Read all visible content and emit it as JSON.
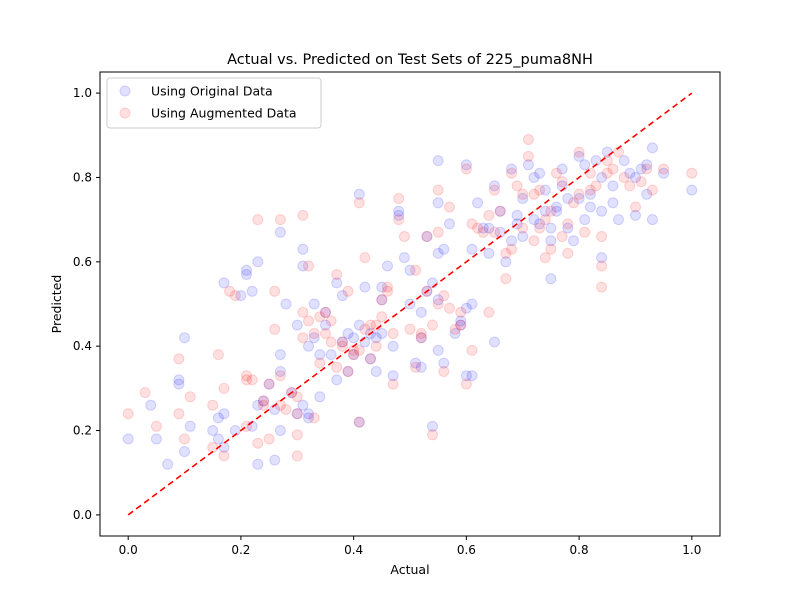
{
  "chart_data": {
    "type": "scatter",
    "title": "Actual vs. Predicted on Test Sets of 225_puma8NH",
    "xlabel": "Actual",
    "ylabel": "Predicted",
    "xlim": [
      -0.05,
      1.05
    ],
    "ylim": [
      -0.05,
      1.05
    ],
    "xticks": [
      "0.0",
      "0.2",
      "0.4",
      "0.6",
      "0.8",
      "1.0"
    ],
    "yticks": [
      "0.0",
      "0.2",
      "0.4",
      "0.6",
      "0.8",
      "1.0"
    ],
    "grid": false,
    "legend_position": "upper-left",
    "reference_line": {
      "style": "dashed",
      "color": "#ff0000",
      "from": [
        0,
        0
      ],
      "to": [
        1,
        1
      ]
    },
    "series": [
      {
        "name": "Using Original Data",
        "color": "#0000ff",
        "alpha": 0.12,
        "points": [
          [
            0.0,
            0.18
          ],
          [
            0.04,
            0.26
          ],
          [
            0.05,
            0.18
          ],
          [
            0.07,
            0.12
          ],
          [
            0.09,
            0.32
          ],
          [
            0.09,
            0.31
          ],
          [
            0.1,
            0.15
          ],
          [
            0.1,
            0.42
          ],
          [
            0.11,
            0.21
          ],
          [
            0.15,
            0.2
          ],
          [
            0.16,
            0.18
          ],
          [
            0.16,
            0.23
          ],
          [
            0.17,
            0.24
          ],
          [
            0.17,
            0.16
          ],
          [
            0.17,
            0.55
          ],
          [
            0.19,
            0.2
          ],
          [
            0.2,
            0.52
          ],
          [
            0.21,
            0.57
          ],
          [
            0.21,
            0.58
          ],
          [
            0.22,
            0.53
          ],
          [
            0.22,
            0.21
          ],
          [
            0.23,
            0.26
          ],
          [
            0.23,
            0.12
          ],
          [
            0.23,
            0.6
          ],
          [
            0.24,
            0.27
          ],
          [
            0.25,
            0.31
          ],
          [
            0.26,
            0.13
          ],
          [
            0.26,
            0.25
          ],
          [
            0.27,
            0.38
          ],
          [
            0.27,
            0.34
          ],
          [
            0.27,
            0.2
          ],
          [
            0.27,
            0.67
          ],
          [
            0.28,
            0.5
          ],
          [
            0.29,
            0.29
          ],
          [
            0.3,
            0.24
          ],
          [
            0.3,
            0.45
          ],
          [
            0.31,
            0.63
          ],
          [
            0.31,
            0.59
          ],
          [
            0.31,
            0.26
          ],
          [
            0.32,
            0.4
          ],
          [
            0.32,
            0.24
          ],
          [
            0.32,
            0.23
          ],
          [
            0.33,
            0.5
          ],
          [
            0.33,
            0.42
          ],
          [
            0.34,
            0.38
          ],
          [
            0.34,
            0.28
          ],
          [
            0.35,
            0.45
          ],
          [
            0.35,
            0.48
          ],
          [
            0.36,
            0.38
          ],
          [
            0.37,
            0.32
          ],
          [
            0.37,
            0.55
          ],
          [
            0.38,
            0.41
          ],
          [
            0.38,
            0.52
          ],
          [
            0.39,
            0.34
          ],
          [
            0.39,
            0.43
          ],
          [
            0.4,
            0.38
          ],
          [
            0.4,
            0.42
          ],
          [
            0.41,
            0.76
          ],
          [
            0.41,
            0.22
          ],
          [
            0.41,
            0.45
          ],
          [
            0.42,
            0.54
          ],
          [
            0.42,
            0.41
          ],
          [
            0.43,
            0.37
          ],
          [
            0.43,
            0.43
          ],
          [
            0.44,
            0.34
          ],
          [
            0.44,
            0.42
          ],
          [
            0.45,
            0.43
          ],
          [
            0.45,
            0.51
          ],
          [
            0.45,
            0.54
          ],
          [
            0.46,
            0.59
          ],
          [
            0.47,
            0.4
          ],
          [
            0.47,
            0.33
          ],
          [
            0.48,
            0.72
          ],
          [
            0.48,
            0.71
          ],
          [
            0.49,
            0.61
          ],
          [
            0.5,
            0.5
          ],
          [
            0.5,
            0.58
          ],
          [
            0.51,
            0.36
          ],
          [
            0.52,
            0.48
          ],
          [
            0.52,
            0.35
          ],
          [
            0.52,
            0.42
          ],
          [
            0.53,
            0.66
          ],
          [
            0.53,
            0.53
          ],
          [
            0.54,
            0.55
          ],
          [
            0.54,
            0.21
          ],
          [
            0.55,
            0.84
          ],
          [
            0.55,
            0.74
          ],
          [
            0.55,
            0.62
          ],
          [
            0.55,
            0.51
          ],
          [
            0.55,
            0.39
          ],
          [
            0.56,
            0.36
          ],
          [
            0.56,
            0.63
          ],
          [
            0.57,
            0.69
          ],
          [
            0.58,
            0.43
          ],
          [
            0.59,
            0.46
          ],
          [
            0.59,
            0.45
          ],
          [
            0.6,
            0.83
          ],
          [
            0.6,
            0.49
          ],
          [
            0.6,
            0.33
          ],
          [
            0.61,
            0.33
          ],
          [
            0.61,
            0.5
          ],
          [
            0.61,
            0.63
          ],
          [
            0.62,
            0.74
          ],
          [
            0.63,
            0.68
          ],
          [
            0.64,
            0.62
          ],
          [
            0.64,
            0.68
          ],
          [
            0.65,
            0.78
          ],
          [
            0.65,
            0.41
          ],
          [
            0.66,
            0.72
          ],
          [
            0.66,
            0.67
          ],
          [
            0.67,
            0.6
          ],
          [
            0.68,
            0.65
          ],
          [
            0.68,
            0.82
          ],
          [
            0.69,
            0.69
          ],
          [
            0.69,
            0.71
          ],
          [
            0.7,
            0.75
          ],
          [
            0.7,
            0.66
          ],
          [
            0.71,
            0.83
          ],
          [
            0.72,
            0.8
          ],
          [
            0.72,
            0.7
          ],
          [
            0.73,
            0.81
          ],
          [
            0.73,
            0.69
          ],
          [
            0.74,
            0.72
          ],
          [
            0.74,
            0.77
          ],
          [
            0.75,
            0.65
          ],
          [
            0.75,
            0.68
          ],
          [
            0.75,
            0.56
          ],
          [
            0.76,
            0.72
          ],
          [
            0.76,
            0.73
          ],
          [
            0.77,
            0.78
          ],
          [
            0.77,
            0.82
          ],
          [
            0.78,
            0.75
          ],
          [
            0.78,
            0.68
          ],
          [
            0.79,
            0.65
          ],
          [
            0.8,
            0.75
          ],
          [
            0.8,
            0.85
          ],
          [
            0.81,
            0.83
          ],
          [
            0.81,
            0.7
          ],
          [
            0.82,
            0.76
          ],
          [
            0.82,
            0.73
          ],
          [
            0.83,
            0.84
          ],
          [
            0.84,
            0.8
          ],
          [
            0.84,
            0.72
          ],
          [
            0.84,
            0.61
          ],
          [
            0.85,
            0.86
          ],
          [
            0.86,
            0.78
          ],
          [
            0.86,
            0.74
          ],
          [
            0.87,
            0.7
          ],
          [
            0.88,
            0.84
          ],
          [
            0.89,
            0.81
          ],
          [
            0.9,
            0.71
          ],
          [
            0.9,
            0.8
          ],
          [
            0.91,
            0.82
          ],
          [
            0.92,
            0.83
          ],
          [
            0.92,
            0.76
          ],
          [
            0.93,
            0.87
          ],
          [
            0.93,
            0.7
          ],
          [
            0.95,
            0.81
          ],
          [
            1.0,
            0.77
          ]
        ]
      },
      {
        "name": "Using Augmented Data",
        "color": "#ff0000",
        "alpha": 0.12,
        "points": [
          [
            0.0,
            0.24
          ],
          [
            0.03,
            0.29
          ],
          [
            0.05,
            0.21
          ],
          [
            0.09,
            0.37
          ],
          [
            0.09,
            0.24
          ],
          [
            0.1,
            0.18
          ],
          [
            0.11,
            0.28
          ],
          [
            0.15,
            0.26
          ],
          [
            0.15,
            0.16
          ],
          [
            0.16,
            0.38
          ],
          [
            0.17,
            0.3
          ],
          [
            0.17,
            0.14
          ],
          [
            0.18,
            0.53
          ],
          [
            0.19,
            0.52
          ],
          [
            0.21,
            0.33
          ],
          [
            0.21,
            0.21
          ],
          [
            0.21,
            0.32
          ],
          [
            0.22,
            0.32
          ],
          [
            0.23,
            0.7
          ],
          [
            0.23,
            0.17
          ],
          [
            0.24,
            0.27
          ],
          [
            0.24,
            0.26
          ],
          [
            0.25,
            0.18
          ],
          [
            0.25,
            0.31
          ],
          [
            0.26,
            0.44
          ],
          [
            0.26,
            0.53
          ],
          [
            0.27,
            0.7
          ],
          [
            0.27,
            0.33
          ],
          [
            0.27,
            0.26
          ],
          [
            0.28,
            0.25
          ],
          [
            0.29,
            0.29
          ],
          [
            0.3,
            0.19
          ],
          [
            0.3,
            0.24
          ],
          [
            0.3,
            0.28
          ],
          [
            0.3,
            0.14
          ],
          [
            0.31,
            0.42
          ],
          [
            0.31,
            0.71
          ],
          [
            0.31,
            0.48
          ],
          [
            0.32,
            0.46
          ],
          [
            0.32,
            0.59
          ],
          [
            0.33,
            0.23
          ],
          [
            0.33,
            0.43
          ],
          [
            0.34,
            0.36
          ],
          [
            0.34,
            0.47
          ],
          [
            0.35,
            0.43
          ],
          [
            0.35,
            0.48
          ],
          [
            0.36,
            0.41
          ],
          [
            0.36,
            0.46
          ],
          [
            0.37,
            0.35
          ],
          [
            0.37,
            0.57
          ],
          [
            0.38,
            0.4
          ],
          [
            0.38,
            0.41
          ],
          [
            0.39,
            0.53
          ],
          [
            0.39,
            0.34
          ],
          [
            0.4,
            0.38
          ],
          [
            0.4,
            0.39
          ],
          [
            0.41,
            0.39
          ],
          [
            0.41,
            0.74
          ],
          [
            0.41,
            0.22
          ],
          [
            0.42,
            0.61
          ],
          [
            0.42,
            0.44
          ],
          [
            0.43,
            0.45
          ],
          [
            0.43,
            0.37
          ],
          [
            0.44,
            0.4
          ],
          [
            0.44,
            0.45
          ],
          [
            0.45,
            0.51
          ],
          [
            0.45,
            0.47
          ],
          [
            0.46,
            0.54
          ],
          [
            0.46,
            0.53
          ],
          [
            0.47,
            0.43
          ],
          [
            0.47,
            0.31
          ],
          [
            0.48,
            0.7
          ],
          [
            0.48,
            0.75
          ],
          [
            0.49,
            0.66
          ],
          [
            0.5,
            0.44
          ],
          [
            0.51,
            0.35
          ],
          [
            0.51,
            0.58
          ],
          [
            0.52,
            0.43
          ],
          [
            0.52,
            0.42
          ],
          [
            0.53,
            0.66
          ],
          [
            0.53,
            0.53
          ],
          [
            0.54,
            0.19
          ],
          [
            0.54,
            0.45
          ],
          [
            0.55,
            0.5
          ],
          [
            0.55,
            0.67
          ],
          [
            0.55,
            0.77
          ],
          [
            0.56,
            0.52
          ],
          [
            0.56,
            0.34
          ],
          [
            0.57,
            0.49
          ],
          [
            0.57,
            0.73
          ],
          [
            0.58,
            0.44
          ],
          [
            0.59,
            0.48
          ],
          [
            0.59,
            0.45
          ],
          [
            0.6,
            0.82
          ],
          [
            0.6,
            0.31
          ],
          [
            0.61,
            0.69
          ],
          [
            0.61,
            0.39
          ],
          [
            0.62,
            0.68
          ],
          [
            0.63,
            0.67
          ],
          [
            0.64,
            0.71
          ],
          [
            0.64,
            0.48
          ],
          [
            0.65,
            0.77
          ],
          [
            0.65,
            0.67
          ],
          [
            0.66,
            0.72
          ],
          [
            0.67,
            0.56
          ],
          [
            0.67,
            0.62
          ],
          [
            0.68,
            0.81
          ],
          [
            0.68,
            0.63
          ],
          [
            0.69,
            0.78
          ],
          [
            0.7,
            0.76
          ],
          [
            0.7,
            0.68
          ],
          [
            0.71,
            0.89
          ],
          [
            0.71,
            0.85
          ],
          [
            0.72,
            0.76
          ],
          [
            0.72,
            0.65
          ],
          [
            0.73,
            0.68
          ],
          [
            0.73,
            0.77
          ],
          [
            0.74,
            0.61
          ],
          [
            0.74,
            0.7
          ],
          [
            0.75,
            0.63
          ],
          [
            0.75,
            0.72
          ],
          [
            0.76,
            0.81
          ],
          [
            0.77,
            0.66
          ],
          [
            0.77,
            0.79
          ],
          [
            0.78,
            0.69
          ],
          [
            0.78,
            0.62
          ],
          [
            0.79,
            0.74
          ],
          [
            0.8,
            0.86
          ],
          [
            0.8,
            0.76
          ],
          [
            0.81,
            0.67
          ],
          [
            0.82,
            0.81
          ],
          [
            0.82,
            0.77
          ],
          [
            0.83,
            0.78
          ],
          [
            0.84,
            0.54
          ],
          [
            0.84,
            0.66
          ],
          [
            0.84,
            0.59
          ],
          [
            0.85,
            0.81
          ],
          [
            0.85,
            0.84
          ],
          [
            0.86,
            0.82
          ],
          [
            0.87,
            0.86
          ],
          [
            0.88,
            0.8
          ],
          [
            0.89,
            0.78
          ],
          [
            0.9,
            0.73
          ],
          [
            0.91,
            0.79
          ],
          [
            0.92,
            0.82
          ],
          [
            0.93,
            0.77
          ],
          [
            0.95,
            0.82
          ],
          [
            1.0,
            0.81
          ]
        ]
      }
    ]
  }
}
